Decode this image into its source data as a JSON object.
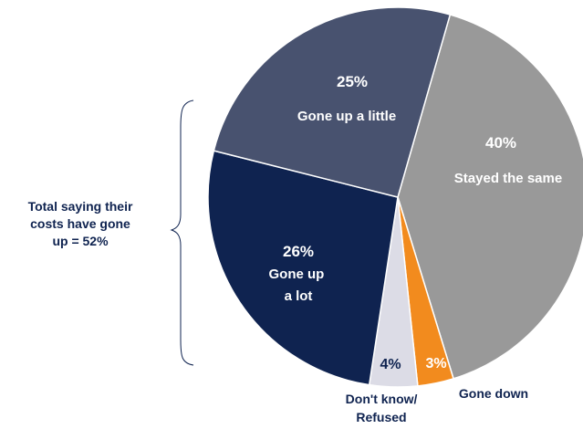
{
  "chart_data": {
    "type": "pie",
    "start_angle_deg": 16,
    "slices": [
      {
        "label": "Stayed the same",
        "value": 40,
        "display": "40%",
        "color": "#999999",
        "text_color": "#ffffff"
      },
      {
        "label": "Gone down",
        "value": 3,
        "display": "3%",
        "color": "#f28b1e",
        "text_color": "#ffffff"
      },
      {
        "label": "Don't know/ Refused",
        "value": 4,
        "display": "4%",
        "color": "#dcdce6",
        "text_color": "#0f2350"
      },
      {
        "label": "Gone up a lot",
        "value": 26,
        "display": "26%",
        "color": "#0f2350",
        "text_color": "#ffffff"
      },
      {
        "label": "Gone up a little",
        "value": 25,
        "display": "25%",
        "color": "#48526f",
        "text_color": "#ffffff"
      }
    ],
    "annotation": {
      "lines": [
        "Total saying their",
        "costs have gone",
        "up = 52%"
      ]
    }
  }
}
